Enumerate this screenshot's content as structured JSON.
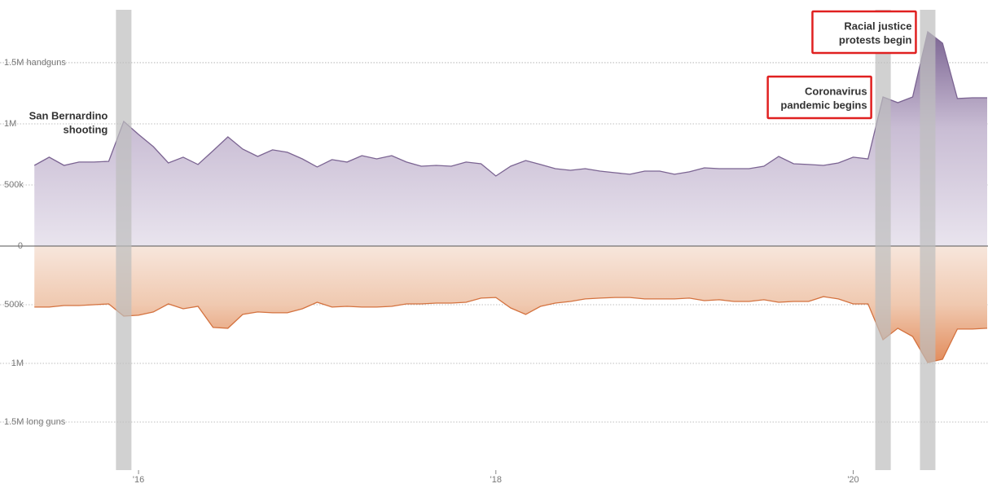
{
  "chart_data": {
    "type": "mirrored-area",
    "x": [
      2015.417,
      2015.5,
      2015.583,
      2015.667,
      2015.75,
      2015.833,
      2015.917,
      2016,
      2016.083,
      2016.167,
      2016.25,
      2016.333,
      2016.417,
      2016.5,
      2016.583,
      2016.667,
      2016.75,
      2016.833,
      2016.917,
      2017,
      2017.083,
      2017.167,
      2017.25,
      2017.333,
      2017.417,
      2017.5,
      2017.583,
      2017.667,
      2017.75,
      2017.833,
      2017.917,
      2018,
      2018.083,
      2018.167,
      2018.25,
      2018.333,
      2018.417,
      2018.5,
      2018.583,
      2018.667,
      2018.75,
      2018.833,
      2018.917,
      2019,
      2019.083,
      2019.167,
      2019.25,
      2019.333,
      2019.417,
      2019.5,
      2019.583,
      2019.667,
      2019.75,
      2019.833,
      2019.917,
      2020,
      2020.083,
      2020.167,
      2020.25,
      2020.333,
      2020.417,
      2020.5,
      2020.583,
      2020.667,
      2020.75
    ],
    "series": [
      {
        "color": "#7b6492",
        "values": [
          660000,
          727000,
          660000,
          687000,
          687000,
          693000,
          1020000,
          913000,
          813000,
          680000,
          727000,
          667000,
          780000,
          893000,
          793000,
          733000,
          787000,
          767000,
          713000,
          647000,
          707000,
          687000,
          740000,
          713000,
          740000,
          687000,
          653000,
          660000,
          653000,
          687000,
          673000,
          573000,
          653000,
          700000,
          667000,
          633000,
          620000,
          633000,
          613000,
          600000,
          587000,
          613000,
          613000,
          587000,
          607000,
          640000,
          633000,
          633000,
          633000,
          653000,
          733000,
          673000,
          667000,
          660000,
          680000,
          727000,
          713000,
          1220000,
          1173000,
          1220000,
          1753000,
          1660000,
          1207000,
          1213000,
          1213000
        ]
      },
      {
        "color": "#d4723f",
        "axis": "y2",
        "values": [
          520000,
          520000,
          507000,
          507000,
          500000,
          493000,
          597000,
          590000,
          562000,
          493000,
          535000,
          514000,
          694000,
          701000,
          583000,
          562000,
          569000,
          569000,
          535000,
          479000,
          520000,
          514000,
          520000,
          520000,
          514000,
          493000,
          493000,
          486000,
          486000,
          479000,
          444000,
          438000,
          528000,
          583000,
          514000,
          486000,
          472000,
          451000,
          444000,
          438000,
          438000,
          451000,
          451000,
          451000,
          444000,
          465000,
          458000,
          472000,
          472000,
          458000,
          479000,
          472000,
          472000,
          431000,
          451000,
          493000,
          493000,
          799000,
          701000,
          771000,
          993000,
          965000,
          708000,
          708000,
          701000
        ]
      }
    ],
    "xlim": [
      2015.375,
      2020.75
    ],
    "xticks": [
      {
        "value": 2016,
        "label": "'16"
      },
      {
        "value": 2018,
        "label": "'18"
      },
      {
        "value": 2020,
        "label": "'20"
      }
    ],
    "ylim": [
      0,
      1933000
    ],
    "yticks": [
      0,
      {
        "value": 500000,
        "label": "500k"
      },
      {
        "value": 1000000,
        "label": "1M"
      },
      {
        "value": 1500000,
        "label": "1.5M handguns"
      }
    ],
    "y2lim": [
      0,
      1910000
    ],
    "y2ticks": [
      {
        "value": 500000,
        "label": "500k"
      },
      {
        "value": 1000000,
        "label": "1M"
      },
      {
        "value": 1500000,
        "label": "1.5M long guns"
      }
    ],
    "grid": true,
    "annotations": [
      {
        "x": 2015.917,
        "lines": [
          "San Bernardino",
          "shooting"
        ]
      },
      {
        "x": 2020.167,
        "lines": [
          "Coronavirus",
          "pandemic begins"
        ]
      },
      {
        "x": 2020.417,
        "lines": [
          "Racial justice",
          "protests begin"
        ]
      }
    ]
  }
}
